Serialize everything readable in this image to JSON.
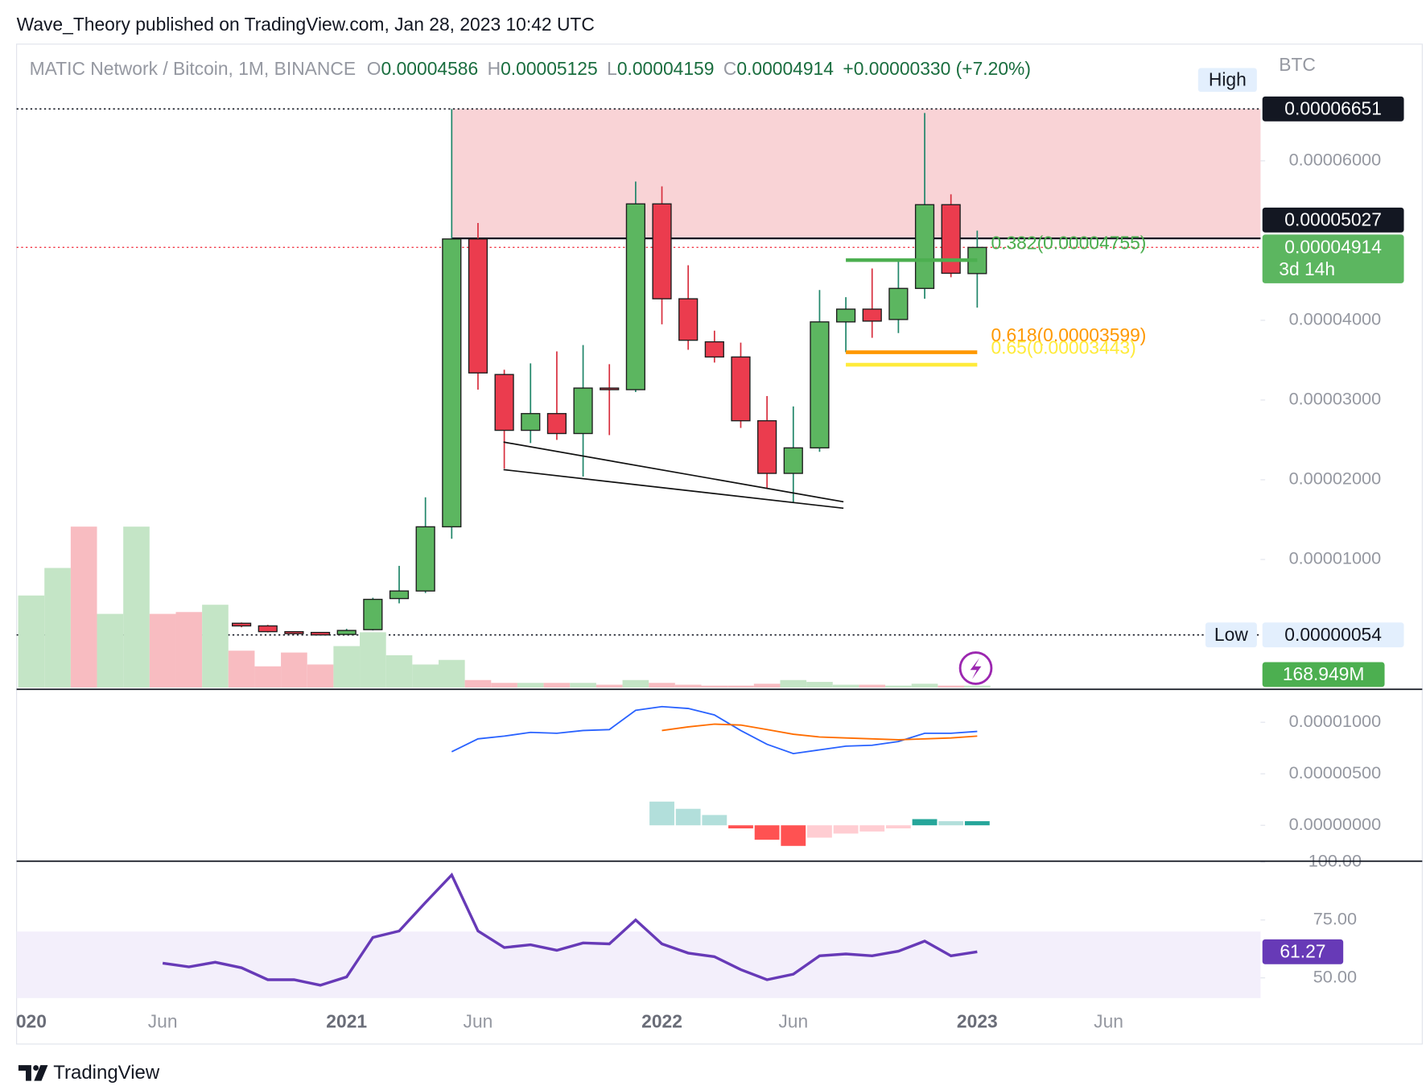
{
  "header": {
    "publisher": "Wave_Theory published on TradingView.com, Jan 28, 2023 10:42 UTC"
  },
  "footer": {
    "brand": "TradingView"
  },
  "chart_data": [
    {
      "type": "candlestick",
      "title": "MATIC Network / Bitcoin, 1M, BINANCE",
      "legend": {
        "open_label": "O",
        "open": "0.00004586",
        "high_label": "H",
        "high": "0.00005125",
        "low_label": "L",
        "low": "0.00004159",
        "close_label": "C",
        "close": "0.00004914",
        "change": "+0.00000330 (+7.20%)"
      },
      "currency": "BTC",
      "categories": [
        "020",
        null,
        null,
        null,
        null,
        "Jun",
        null,
        null,
        null,
        null,
        null,
        null,
        "2021",
        null,
        null,
        null,
        null,
        "Jun",
        null,
        null,
        null,
        null,
        null,
        null,
        "2022",
        null,
        null,
        null,
        null,
        "Jun",
        null,
        null,
        null,
        null,
        null,
        null,
        "2023",
        null,
        null,
        null,
        null,
        "Jun"
      ],
      "open": [
        1.67e-06,
        1.79e-06,
        2.25e-06,
        1.56e-06,
        1.67e-06,
        2e-06,
        1.9e-06,
        1.7e-06,
        2e-06,
        1.67e-06,
        9.5e-07,
        8.5e-07,
        6e-07,
        1.2e-06,
        5.1e-06,
        6.05e-06,
        1.41e-05,
        5.02e-05,
        3.32e-05,
        2.62e-05,
        2.83e-05,
        2.58e-05,
        3.15e-05,
        3.13e-05,
        5.46e-05,
        4.27e-05,
        3.73e-05,
        3.54e-05,
        2.74e-05,
        2.08e-05,
        2.4e-05,
        3.98e-05,
        4.14e-05,
        4.01e-05,
        4.4e-05,
        5.45e-05,
        4.586e-05,
        null,
        null,
        null,
        null,
        null
      ],
      "high": [
        2.1e-06,
        2.4e-06,
        3e-06,
        1.8e-06,
        3e-06,
        2.3e-06,
        2.1e-06,
        2.3e-06,
        2.1e-06,
        1.8e-06,
        1e-06,
        9e-07,
        1.3e-06,
        5.2e-06,
        9.2e-06,
        1.78e-05,
        6.651e-05,
        5.22e-05,
        3.38e-05,
        3.46e-05,
        3.61e-05,
        3.69e-05,
        3.45e-05,
        5.74e-05,
        5.68e-05,
        4.69e-05,
        3.87e-05,
        3.72e-05,
        3.05e-05,
        2.92e-05,
        4.38e-05,
        4.29e-05,
        4.65e-05,
        4.75e-05,
        6.6e-05,
        5.58e-05,
        5.125e-05,
        null,
        null,
        null,
        null,
        null
      ],
      "low": [
        1.5e-06,
        1.6e-06,
        1.4e-06,
        1.4e-06,
        1.5e-06,
        1.7e-06,
        1.5e-06,
        1.6e-06,
        1.5e-06,
        8.5e-07,
        6e-07,
        5.4e-07,
        5.5e-07,
        1.1e-06,
        4.5e-06,
        5.8e-06,
        1.26e-05,
        3.13e-05,
        2.14e-05,
        2.46e-05,
        2.5e-05,
        2.04e-05,
        2.56e-05,
        3.1e-05,
        3.95e-05,
        3.63e-05,
        3.47e-05,
        2.65e-05,
        1.89e-05,
        1.72e-05,
        2.35e-05,
        3.6e-05,
        3.78e-05,
        3.84e-05,
        4.27e-05,
        4.54e-05,
        4.159e-05,
        null,
        null,
        null,
        null,
        null
      ],
      "close": [
        1.98e-06,
        2.25e-06,
        1.56e-06,
        1.7e-06,
        2e-06,
        1.9e-06,
        1.7e-06,
        2e-06,
        1.67e-06,
        9.5e-07,
        7e-07,
        5.4e-07,
        1.1e-06,
        5e-06,
        6.05e-06,
        1.41e-05,
        5.02e-05,
        3.34e-05,
        2.62e-05,
        2.83e-05,
        2.58e-05,
        3.15e-05,
        3.13e-05,
        5.46e-05,
        4.27e-05,
        3.75e-05,
        3.54e-05,
        2.74e-05,
        2.08e-05,
        2.4e-05,
        3.98e-05,
        4.14e-05,
        3.99e-05,
        4.4e-05,
        5.45e-05,
        4.59e-05,
        4.914e-05,
        null,
        null,
        null,
        null,
        null
      ],
      "up_color": "#5cb660",
      "down_color": "#eb3c4e",
      "wick_up_color": "#21866a",
      "wick_down_color": "#d8303f",
      "border_color": "#1e1e1e",
      "ylim": [
        -6.05e-06,
        7.441e-05
      ],
      "yticks": [
        {
          "value": 1e-05,
          "label": "0.00001000"
        },
        {
          "value": 2e-05,
          "label": "0.00002000"
        },
        {
          "value": 3e-05,
          "label": "0.00003000"
        },
        {
          "value": 4e-05,
          "label": "0.00004000"
        },
        {
          "value": 6e-05,
          "label": "0.00006000"
        }
      ],
      "high_marker": {
        "label": "High",
        "value": 6.651e-05,
        "value_label": "0.00006651"
      },
      "low_marker": {
        "label": "Low",
        "value": 5.4e-07,
        "value_label": "0.00000054"
      },
      "zone": {
        "from": 5.027e-05,
        "to": 6.651e-05,
        "value_label": "0.00005027",
        "color": "#f9d3d6"
      },
      "last_price": {
        "value": 4.914e-05,
        "value_label": "0.00004914",
        "countdown": "3d 14h",
        "color": "#5cb660"
      },
      "fib_levels": [
        {
          "label": "0.382(0.00004755)",
          "value": 4.755e-05,
          "color": "#4caf50"
        },
        {
          "label": "0.618(0.00003599)",
          "value": 3.599e-05,
          "color": "#ff9800"
        },
        {
          "label": "0.65(0.00003443)",
          "value": 3.443e-05,
          "color": "#ffeb3b"
        }
      ]
    },
    {
      "type": "bar",
      "values": [
        8450000000,
        10980000000,
        14780000000,
        6760000000,
        14780000000,
        6760000000,
        6930000000,
        7600000000,
        3380000000,
        1940000000,
        3210000000,
        2110000000,
        3800000000,
        5070000000,
        2960000000,
        2110000000,
        2530000000,
        680000000,
        420000000,
        420000000,
        420000000,
        420000000,
        250000000,
        680000000,
        420000000,
        250000000,
        170000000,
        170000000,
        340000000,
        680000000,
        510000000,
        250000000,
        250000000,
        170000000,
        340000000,
        170000000,
        168949000,
        null,
        null,
        null,
        null,
        null
      ],
      "last_value_label": "168.949M",
      "up_color": "#c4e5c6",
      "down_color": "#f8bcc1",
      "label_color": "#4caf50"
    },
    {
      "type": "macd",
      "ylim": [
        -3.39e-06,
        1.32e-05
      ],
      "yticks": [
        {
          "value": 0,
          "label": "0.00000000"
        },
        {
          "value": 5e-06,
          "label": "0.00000500"
        },
        {
          "value": 1e-05,
          "label": "0.00001000"
        }
      ],
      "series": [
        {
          "color": "#2962ff",
          "values": [
            null,
            null,
            null,
            null,
            null,
            null,
            null,
            null,
            null,
            null,
            null,
            null,
            null,
            null,
            null,
            null,
            7.14e-06,
            8.39e-06,
            8.66e-06,
            9.02e-06,
            8.93e-06,
            9.2e-06,
            9.29e-06,
            1.116e-05,
            1.152e-05,
            1.134e-05,
            1.071e-05,
            9.2e-06,
            7.86e-06,
            6.96e-06,
            7.32e-06,
            7.68e-06,
            7.77e-06,
            8.13e-06,
            8.93e-06,
            8.93e-06,
            9.11e-06,
            null,
            null,
            null,
            null,
            null
          ]
        },
        {
          "color": "#ff6d00",
          "values": [
            null,
            null,
            null,
            null,
            null,
            null,
            null,
            null,
            null,
            null,
            null,
            null,
            null,
            null,
            null,
            null,
            null,
            null,
            null,
            null,
            null,
            null,
            null,
            null,
            9.2e-06,
            9.55e-06,
            9.82e-06,
            9.73e-06,
            9.29e-06,
            8.84e-06,
            8.57e-06,
            8.48e-06,
            8.39e-06,
            8.3e-06,
            8.39e-06,
            8.48e-06,
            8.66e-06,
            null,
            null,
            null,
            null,
            null
          ]
        }
      ],
      "histogram": {
        "values": [
          null,
          null,
          null,
          null,
          null,
          null,
          null,
          null,
          null,
          null,
          null,
          null,
          null,
          null,
          null,
          null,
          null,
          null,
          null,
          null,
          null,
          null,
          null,
          null,
          2.3e-06,
          1.6e-06,
          1e-06,
          -3e-07,
          -1.4e-06,
          -2e-06,
          -1.2e-06,
          -8e-07,
          -6e-07,
          -3e-07,
          6e-07,
          4e-07,
          4e-07,
          null,
          null,
          null,
          null,
          null
        ],
        "colors": [
          null,
          null,
          null,
          null,
          null,
          null,
          null,
          null,
          null,
          null,
          null,
          null,
          null,
          null,
          null,
          null,
          null,
          null,
          null,
          null,
          null,
          null,
          null,
          null,
          "#b2dfdb",
          "#b2dfdb",
          "#b2dfdb",
          "#ff5252",
          "#ff5252",
          "#ff5252",
          "#ffcdd2",
          "#ffcdd2",
          "#ffcdd2",
          "#ffcdd2",
          "#26a69a",
          "#b2dfdb",
          "#26a69a",
          null,
          null,
          null,
          null,
          null
        ]
      }
    },
    {
      "type": "line",
      "ylim": [
        41.27,
        100
      ],
      "yticks": [
        {
          "value": 100,
          "label": "100.00"
        },
        {
          "value": 75,
          "label": "75.00"
        },
        {
          "value": 50,
          "label": "50.00"
        }
      ],
      "series": [
        {
          "color": "#673ab7",
          "values": [
            null,
            null,
            null,
            null,
            null,
            56.35,
            54.76,
            56.75,
            54.37,
            49.21,
            49.21,
            46.83,
            50.4,
            67.46,
            70.24,
            82.54,
            94.44,
            70.24,
            63.1,
            64.29,
            61.9,
            65.08,
            64.68,
            75.0,
            64.68,
            60.71,
            59.13,
            53.57,
            49.21,
            51.59,
            59.52,
            60.32,
            59.52,
            61.51,
            65.87,
            59.52,
            61.27,
            null,
            null,
            null,
            null,
            null
          ]
        }
      ],
      "band": [
        30,
        70
      ],
      "band_color": "#f3effb",
      "last_value_label": "61.27"
    }
  ]
}
